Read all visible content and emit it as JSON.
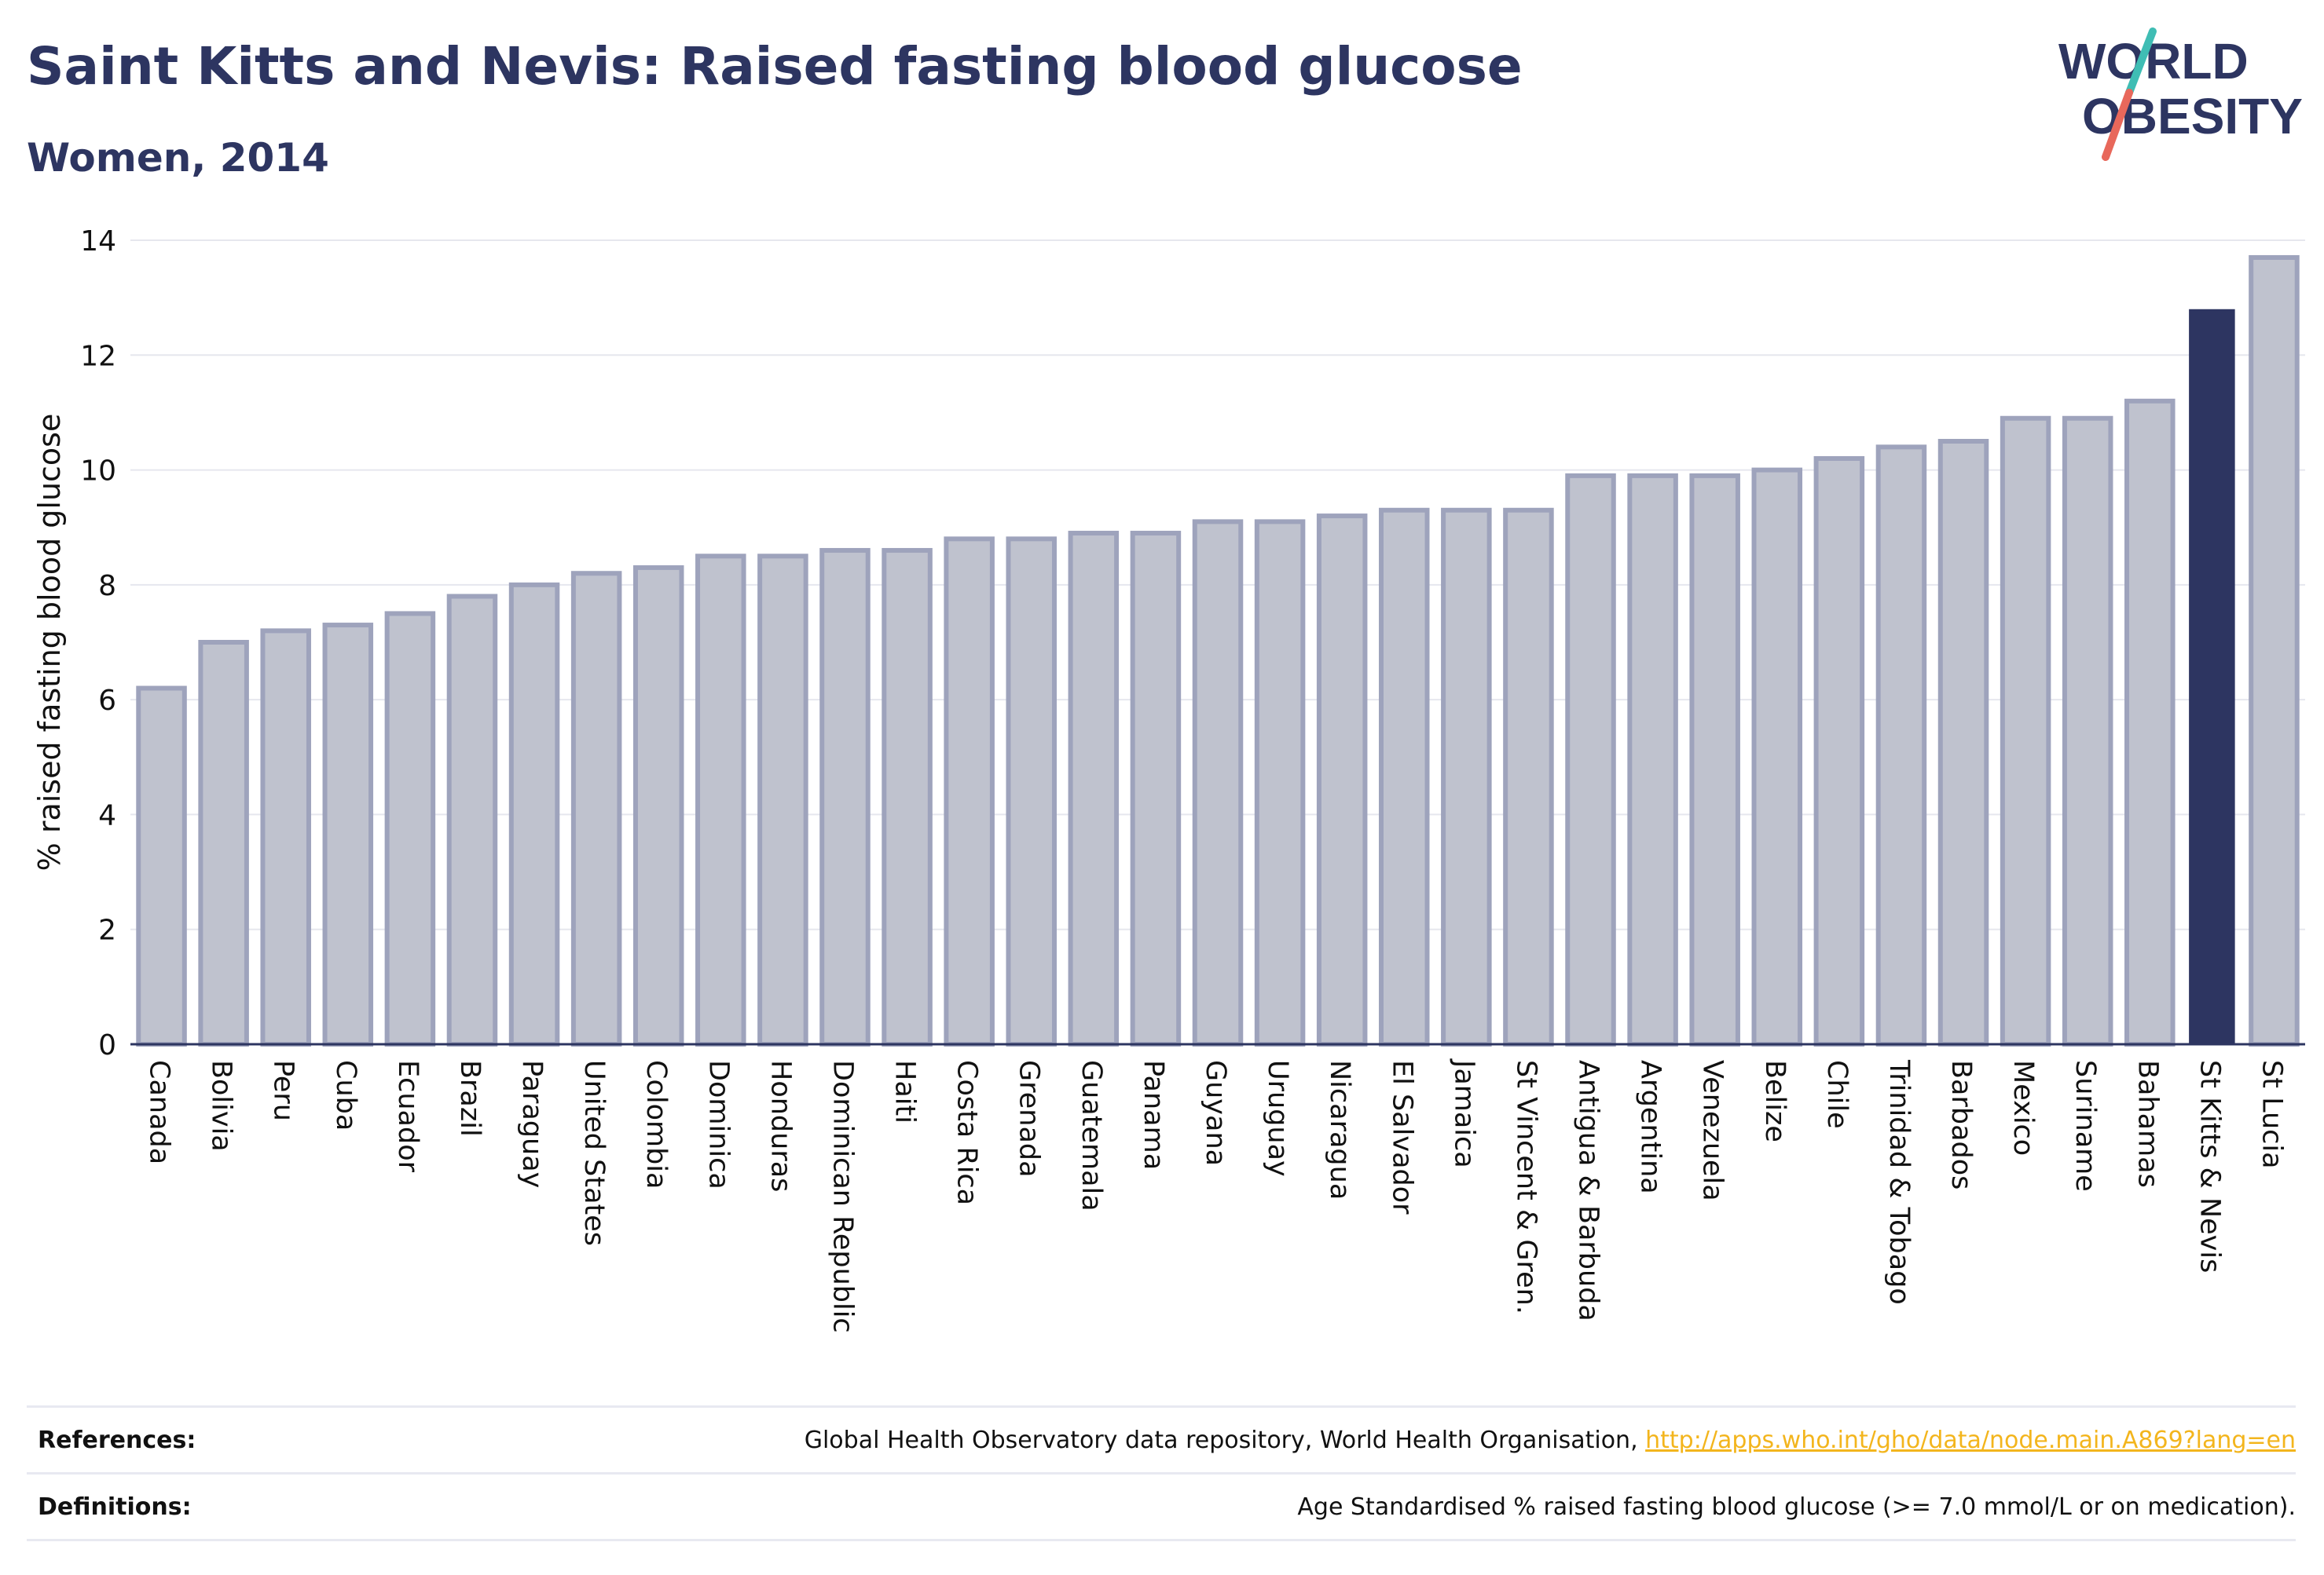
{
  "header": {
    "title": "Saint Kitts and Nevis: Raised fasting blood glucose",
    "subtitle": "Women, 2014"
  },
  "logo": {
    "line1": "WORLD",
    "line2": "OBESITY",
    "slash_colors": [
      "#3fbdb4",
      "#e8685b"
    ]
  },
  "colors": {
    "bar": "#bfc2ce",
    "bar_border": "#9ea3bc",
    "highlight": "#2d3561",
    "text": "#2d3561",
    "link": "#f3b51d"
  },
  "chart_data": {
    "type": "bar",
    "ylabel": "% raised fasting blood glucose",
    "ylim": [
      0,
      14
    ],
    "yticks": [
      0,
      2,
      4,
      6,
      8,
      10,
      12,
      14
    ],
    "grid": true,
    "highlight_category": "St Kitts & Nevis",
    "categories": [
      "Canada",
      "Bolivia",
      "Peru",
      "Cuba",
      "Ecuador",
      "Brazil",
      "Paraguay",
      "United States",
      "Colombia",
      "Dominica",
      "Honduras",
      "Dominican Republic",
      "Haiti",
      "Costa Rica",
      "Grenada",
      "Guatemala",
      "Panama",
      "Guyana",
      "Uruguay",
      "Nicaragua",
      "El Salvador",
      "Jamaica",
      "St Vincent & Gren.",
      "Antigua & Barbuda",
      "Argentina",
      "Venezuela",
      "Belize",
      "Chile",
      "Trinidad & Tobago",
      "Barbados",
      "Mexico",
      "Suriname",
      "Bahamas",
      "St Kitts & Nevis",
      "St Lucia"
    ],
    "values": [
      6.2,
      7.0,
      7.2,
      7.3,
      7.5,
      7.8,
      8.0,
      8.2,
      8.3,
      8.5,
      8.5,
      8.6,
      8.6,
      8.8,
      8.8,
      8.9,
      8.9,
      9.1,
      9.1,
      9.2,
      9.3,
      9.3,
      9.3,
      9.9,
      9.9,
      9.9,
      10.0,
      10.2,
      10.4,
      10.5,
      10.9,
      10.9,
      11.2,
      12.8,
      13.7
    ]
  },
  "footer": {
    "references_label": "References:",
    "references_text": "Global Health Observatory data repository, World Health Organisation, ",
    "references_link": "http://apps.who.int/gho/data/node.main.A869?lang=en",
    "definitions_label": "Definitions:",
    "definitions_text": "Age Standardised % raised fasting blood glucose (>= 7.0 mmol/L or on medication)."
  }
}
